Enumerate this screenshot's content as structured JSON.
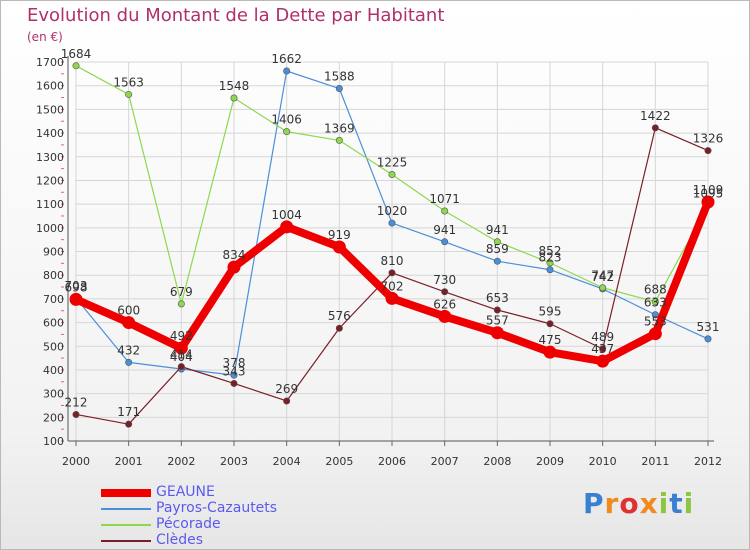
{
  "chart_data": {
    "type": "line",
    "title": "Evolution du Montant de la Dette par Habitant",
    "ylabel": "(en €)",
    "categories": [
      "2000",
      "2001",
      "2002",
      "2003",
      "2004",
      "2005",
      "2006",
      "2007",
      "2008",
      "2009",
      "2010",
      "2011",
      "2012"
    ],
    "ylim": [
      100,
      1700
    ],
    "yticks": [
      100,
      200,
      300,
      400,
      500,
      600,
      700,
      800,
      900,
      1000,
      1100,
      1200,
      1300,
      1400,
      1500,
      1600,
      1700
    ],
    "grid": true,
    "legend_position": "bottom-left",
    "series": [
      {
        "name": "Payros-Cazautets",
        "color": "#4a90d9",
        "values": [
          703,
          432,
          404,
          378,
          1662,
          1588,
          1020,
          941,
          859,
          823,
          742,
          633,
          531
        ]
      },
      {
        "name": "Pécorade",
        "color": "#8ed84f",
        "values": [
          1684,
          1563,
          679,
          1548,
          1406,
          1369,
          1225,
          1071,
          941,
          852,
          747,
          688,
          1095
        ]
      },
      {
        "name": "Clèdes",
        "color": "#7a1f25",
        "values": [
          212,
          171,
          414,
          343,
          269,
          576,
          810,
          730,
          653,
          595,
          489,
          1422,
          1326
        ]
      },
      {
        "name": "GEAUNE",
        "color": "#ee0000",
        "values": [
          698,
          600,
          492,
          834,
          1004,
          919,
          702,
          626,
          557,
          475,
          437,
          553,
          1109
        ]
      }
    ]
  },
  "legend": [
    {
      "label": "GEAUNE",
      "color": "#ee0000"
    },
    {
      "label": "Payros-Cazautets",
      "color": "#4a90d9"
    },
    {
      "label": "Pécorade",
      "color": "#8ed84f"
    },
    {
      "label": "Clèdes",
      "color": "#7a1f25"
    }
  ],
  "logo": {
    "text": "Proxiti",
    "letters": [
      "P",
      "r",
      "o",
      "x",
      "i",
      "t",
      "i"
    ],
    "colors": [
      "#3a7fd0",
      "#f08a1d",
      "#e03030",
      "#f08a1d",
      "#8cc63f",
      "#3a7fd0",
      "#8cc63f"
    ]
  }
}
